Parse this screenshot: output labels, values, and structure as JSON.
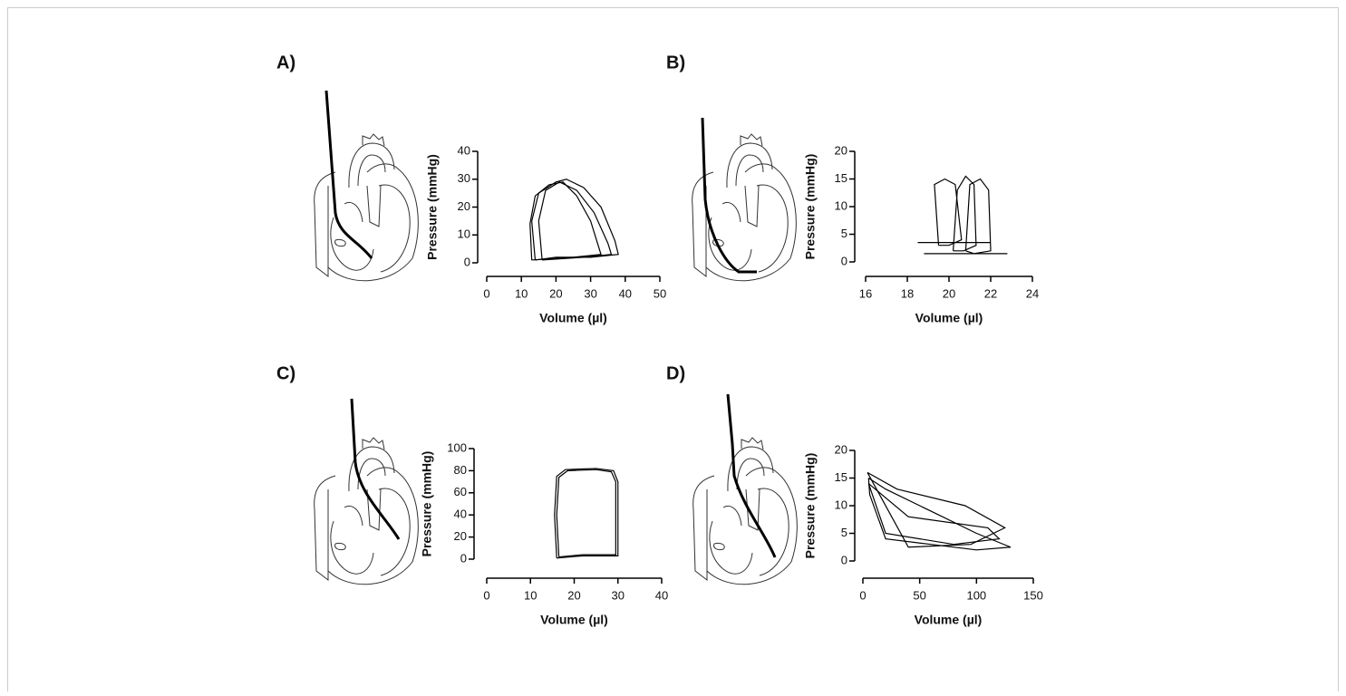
{
  "chart_data": [
    {
      "type": "line",
      "label": "A)",
      "ylabel": "Pressure (mmHg)",
      "xlabel": "Volume (µl)",
      "xlim": [
        0,
        50
      ],
      "xticks": [
        0,
        10,
        20,
        30,
        40,
        50
      ],
      "ylim": [
        0,
        40
      ],
      "yticks": [
        0,
        10,
        20,
        30,
        40
      ],
      "color": "#000000",
      "series": [
        {
          "x": [
            14,
            13,
            15,
            20,
            23,
            28,
            33,
            37,
            38,
            30,
            20,
            14
          ],
          "values": [
            1,
            15,
            25,
            29,
            30,
            27,
            20,
            8,
            3,
            2,
            2,
            1
          ]
        },
        {
          "x": [
            16,
            15,
            17,
            21,
            26,
            31,
            35,
            36,
            28,
            16
          ],
          "values": [
            1,
            15,
            26,
            29,
            26,
            18,
            7,
            3,
            2,
            1
          ]
        },
        {
          "x": [
            13,
            12.5,
            14,
            18,
            22,
            26,
            30,
            33,
            25,
            13
          ],
          "values": [
            1,
            14,
            24,
            28,
            29,
            24,
            15,
            3,
            2,
            1
          ]
        }
      ]
    },
    {
      "type": "line",
      "label": "B)",
      "ylabel": "Pressure (mmHg)",
      "xlabel": "Volume (µl)",
      "xlim": [
        16,
        24
      ],
      "xticks": [
        16,
        18,
        20,
        22,
        24
      ],
      "ylim": [
        0,
        20
      ],
      "yticks": [
        0,
        5,
        10,
        15,
        20
      ],
      "color": "#000000",
      "series": [
        {
          "x": [
            19.5,
            19.3,
            19.8,
            20.3,
            20.6,
            20,
            19.5
          ],
          "values": [
            3,
            14,
            15,
            14,
            4,
            3,
            3
          ]
        },
        {
          "x": [
            20.8,
            21,
            21.5,
            21.9,
            22,
            21.2,
            20.8
          ],
          "values": [
            2,
            14,
            15,
            13,
            2,
            1.5,
            2
          ]
        },
        {
          "x": [
            20.2,
            20.4,
            20.8,
            21.2,
            21.3,
            20.7,
            20.2
          ],
          "values": [
            2,
            13,
            15.5,
            14,
            3,
            2,
            2
          ]
        },
        {
          "x": [
            18.5,
            22
          ],
          "values": [
            3.5,
            3.5
          ]
        },
        {
          "x": [
            18.8,
            22.8
          ],
          "values": [
            1.5,
            1.5
          ]
        }
      ]
    },
    {
      "type": "line",
      "label": "C)",
      "ylabel": "Pressure (mmHg)",
      "xlabel": "Volume (µl)",
      "xlim": [
        0,
        40
      ],
      "xticks": [
        0,
        10,
        20,
        30,
        40
      ],
      "ylim": [
        0,
        100
      ],
      "yticks": [
        0,
        20,
        40,
        60,
        80,
        100
      ],
      "color": "#000000",
      "series": [
        {
          "x": [
            16,
            15.5,
            16,
            18,
            25,
            29,
            30,
            30,
            30,
            22,
            16
          ],
          "values": [
            1,
            40,
            75,
            81,
            82,
            80,
            70,
            30,
            3,
            3,
            1
          ]
        },
        {
          "x": [
            16.5,
            16,
            16.5,
            18.5,
            25,
            28.5,
            29.5,
            29.5,
            29.5,
            22,
            16.5
          ],
          "values": [
            2,
            40,
            74,
            80,
            81,
            79,
            70,
            30,
            4,
            4,
            2
          ]
        }
      ]
    },
    {
      "type": "line",
      "label": "D)",
      "ylabel": "Pressure (mmHg)",
      "xlabel": "Volume (µl)",
      "xlim": [
        0,
        150
      ],
      "xticks": [
        0,
        50,
        100,
        150
      ],
      "ylim": [
        0,
        20
      ],
      "yticks": [
        0,
        5,
        10,
        15,
        20
      ],
      "color": "#000000",
      "series": [
        {
          "x": [
            5,
            6,
            20,
            60,
            100,
            130,
            100,
            60,
            20,
            5
          ],
          "values": [
            15,
            12,
            4,
            3,
            2,
            2.5,
            5,
            9,
            13,
            15
          ]
        },
        {
          "x": [
            5,
            40,
            110,
            120,
            80,
            20,
            5
          ],
          "values": [
            14,
            8,
            6,
            4,
            3,
            5,
            14
          ]
        },
        {
          "x": [
            4,
            30,
            90,
            125,
            95,
            40,
            4
          ],
          "values": [
            16,
            13,
            10,
            6,
            3,
            2.5,
            16
          ]
        }
      ]
    }
  ]
}
